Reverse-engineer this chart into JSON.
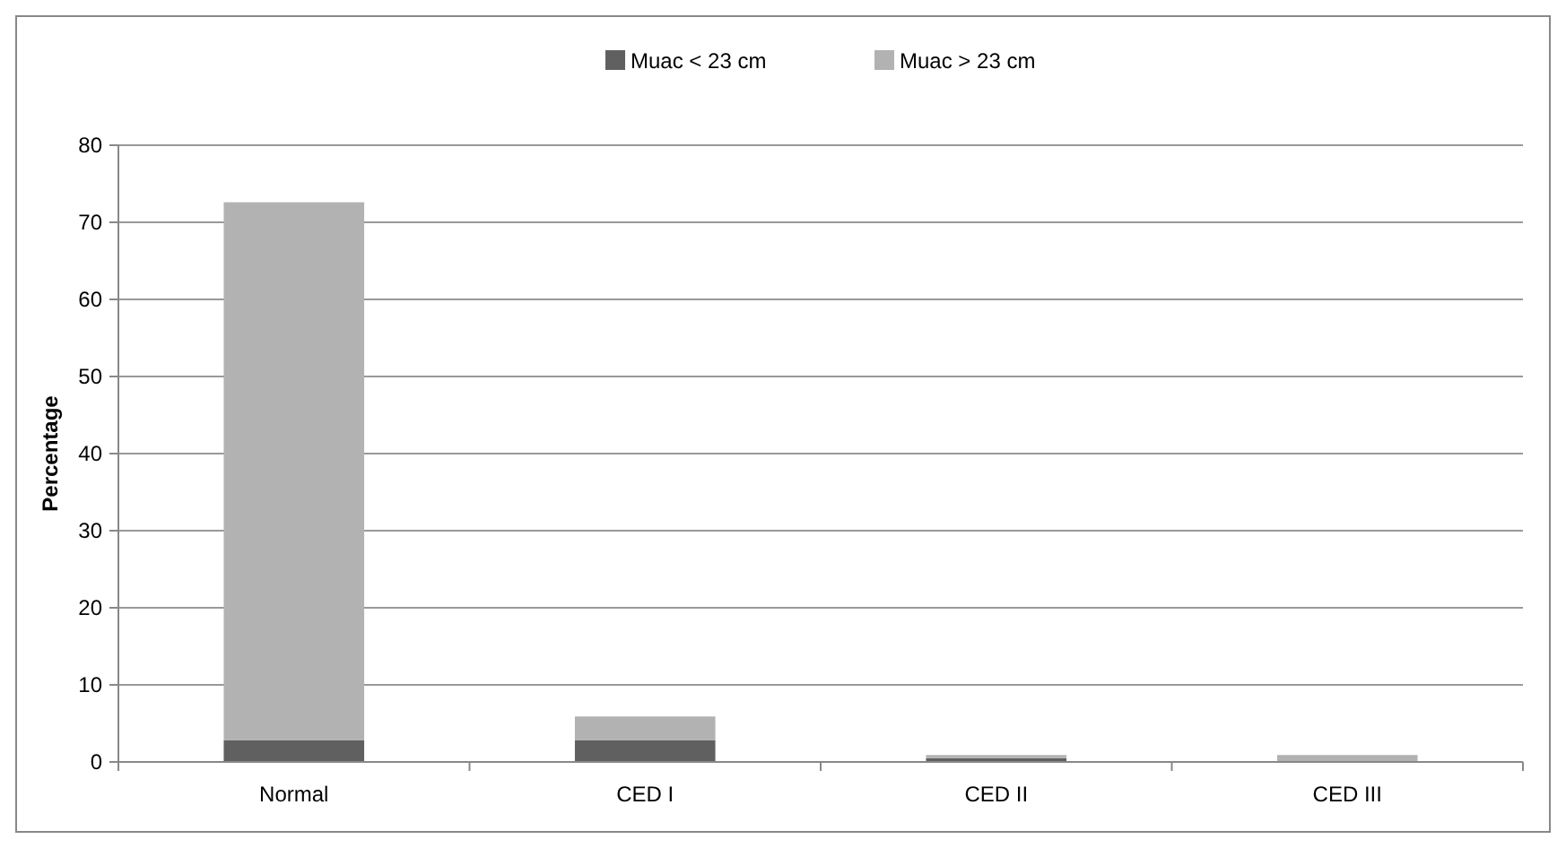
{
  "chart_data": {
    "type": "bar",
    "stacked": true,
    "ylabel": "Percentage",
    "categories": [
      "Normal",
      "CED I",
      "CED II",
      "CED III"
    ],
    "series": [
      {
        "name": "Muac < 23 cm",
        "color": "#606060",
        "values": [
          2.8,
          2.8,
          0.5,
          0
        ]
      },
      {
        "name": "Muac > 23 cm",
        "color": "#b2b2b2",
        "values": [
          69.8,
          3.1,
          0.4,
          0.9
        ]
      }
    ],
    "ylim": [
      0,
      80
    ],
    "yticks": [
      0,
      10,
      20,
      30,
      40,
      50,
      60,
      70,
      80
    ],
    "grid": "y",
    "legend": "top"
  }
}
